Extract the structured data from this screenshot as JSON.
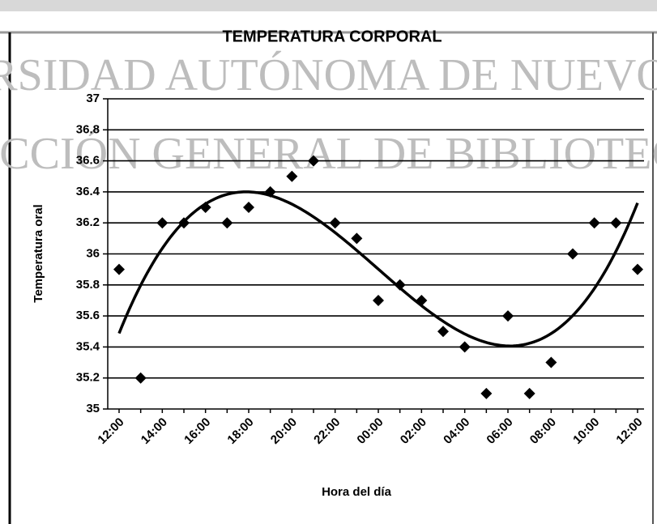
{
  "watermark": [
    "RSIDAD AUTÓNOMA DE NUEVO",
    "RECCIÓN GENERAL DE BIBLIOTECA"
  ],
  "chart_data": {
    "type": "scatter",
    "title": "TEMPERATURA CORPORAL",
    "x_label": "Hora del día",
    "y_label": "Temperatura oral",
    "categories": [
      "12:00",
      null,
      "14:00",
      null,
      "16:00",
      null,
      "18:00",
      null,
      "20:00",
      null,
      "22:00",
      null,
      "00:00",
      null,
      "02:00",
      null,
      "04:00",
      null,
      "06:00",
      null,
      "08:00",
      null,
      "10:00",
      null,
      "12:00"
    ],
    "values": [
      35.9,
      35.2,
      36.2,
      36.2,
      36.3,
      36.2,
      36.3,
      36.4,
      36.5,
      36.6,
      36.2,
      36.1,
      35.7,
      35.8,
      35.7,
      35.5,
      35.4,
      35.1,
      35.6,
      35.1,
      35.3,
      36.0,
      36.2,
      36.2,
      35.9
    ],
    "color": "#000000",
    "trendline": "polynomial",
    "trendline_order": 3,
    "ylim": [
      35,
      37
    ],
    "yticks": [
      35,
      35.2,
      35.4,
      35.6,
      35.8,
      36,
      36.2,
      36.4,
      36.6,
      36.8,
      37
    ],
    "grid": true
  }
}
